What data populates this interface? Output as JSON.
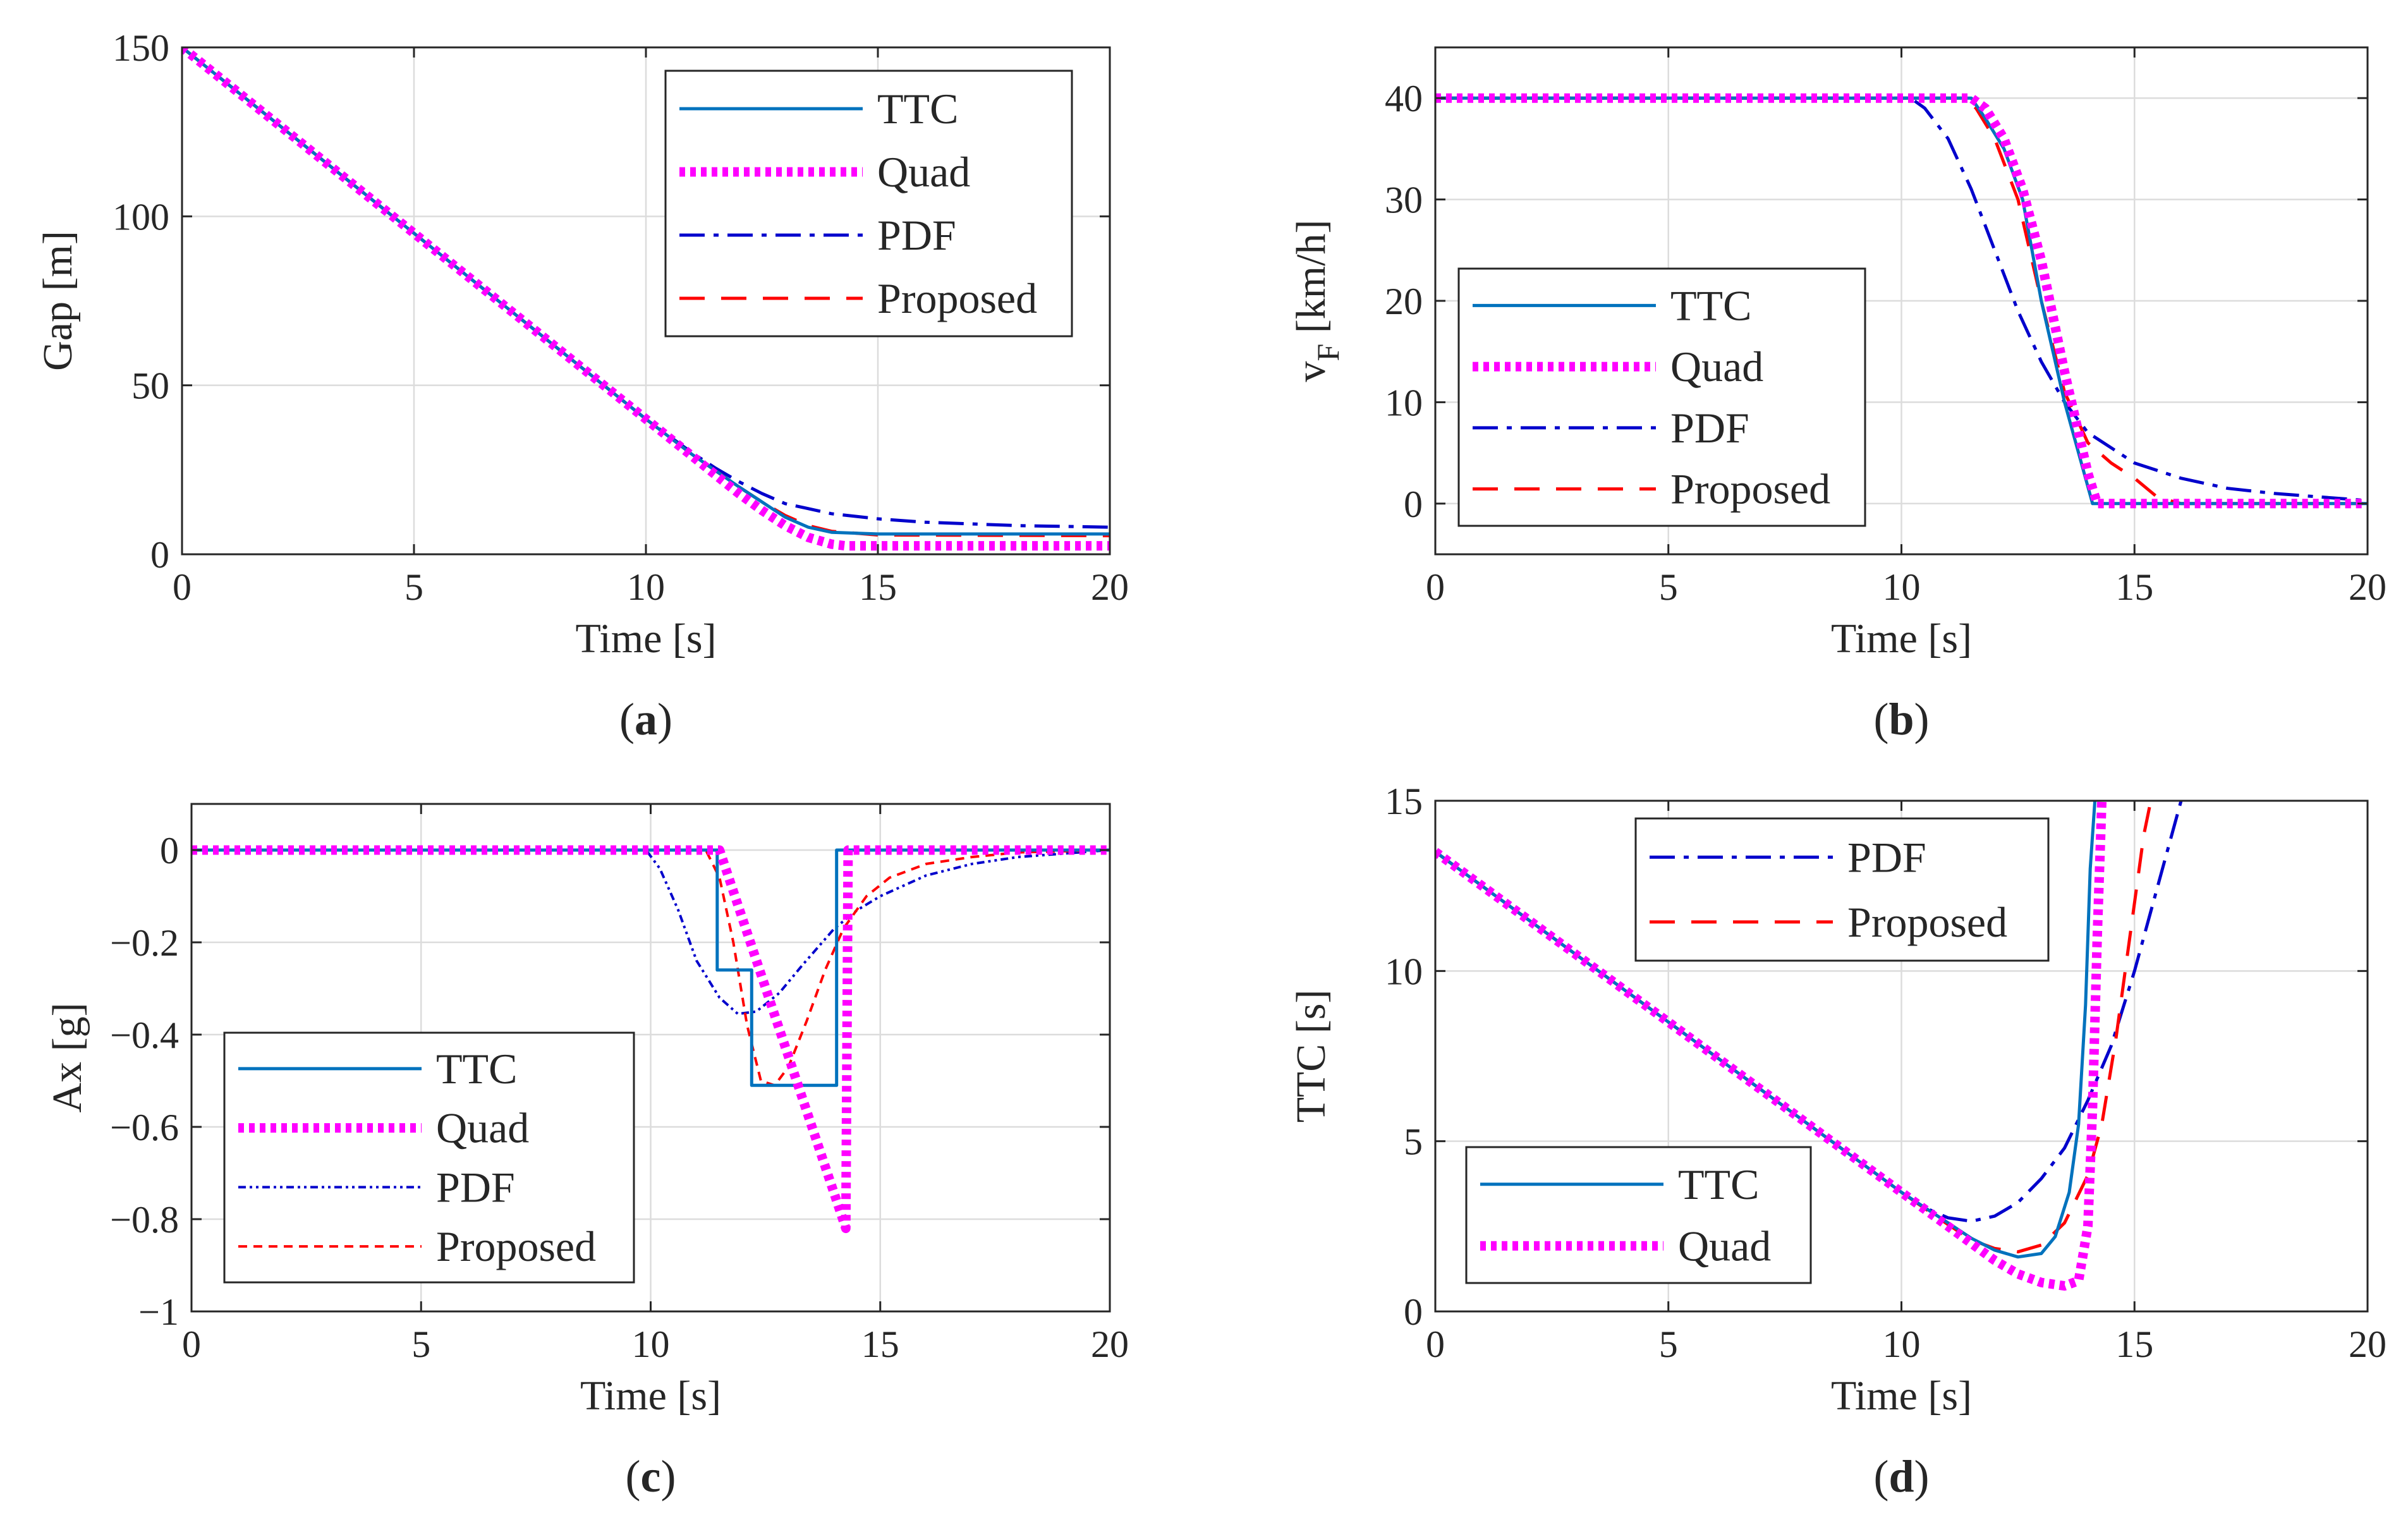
{
  "colors": {
    "TTC": "#0072BD",
    "Quad": "#FF00FF",
    "PDF": "#0000CC",
    "Proposed": "#FF0000",
    "grid": "#DCDCDC",
    "axis": "#262626"
  },
  "chart_data": [
    {
      "id": "a",
      "type": "line",
      "caption_letter": "a",
      "xlabel": "Time [s]",
      "ylabel": "Gap [m]",
      "xlim": [
        0,
        20
      ],
      "ylim": [
        0,
        150
      ],
      "xticks": [
        0,
        5,
        10,
        15,
        20
      ],
      "yticks": [
        0,
        50,
        100,
        150
      ],
      "grid": true,
      "legend_position": "top-right",
      "legend": [
        "TTC",
        "Quad",
        "PDF",
        "Proposed"
      ],
      "series": [
        {
          "name": "TTC",
          "x": [
            0,
            5,
            10,
            11,
            12,
            12.5,
            13,
            13.5,
            14,
            15,
            20
          ],
          "y": [
            150,
            95,
            40,
            29.5,
            20,
            15.5,
            11,
            8,
            6.5,
            6,
            6
          ]
        },
        {
          "name": "Quad",
          "x": [
            0,
            5,
            10,
            11,
            11.5,
            12,
            12.5,
            13,
            13.5,
            14,
            14.3,
            15,
            20
          ],
          "y": [
            150,
            95,
            40,
            29,
            23.5,
            18,
            13,
            8.5,
            5,
            3,
            2.5,
            2.5,
            2.5
          ]
        },
        {
          "name": "PDF",
          "x": [
            0,
            5,
            10,
            10.5,
            11,
            11.5,
            12,
            12.5,
            13,
            14,
            15,
            16,
            18,
            20
          ],
          "y": [
            150,
            95,
            40,
            35,
            30,
            25.5,
            21.5,
            18,
            15,
            12,
            10.5,
            9.5,
            8.5,
            8
          ]
        },
        {
          "name": "Proposed",
          "x": [
            0,
            5,
            10,
            11,
            12,
            12.5,
            13,
            13.5,
            14,
            15,
            20
          ],
          "y": [
            150,
            95,
            40,
            29.5,
            20,
            15.5,
            11.5,
            8.5,
            6.8,
            5.7,
            5.5
          ]
        }
      ]
    },
    {
      "id": "b",
      "type": "line",
      "caption_letter": "b",
      "xlabel": "Time [s]",
      "ylabel": "v",
      "ylabel_subscript": "F",
      "ylabel_unit": " [km/h]",
      "xlim": [
        0,
        20
      ],
      "ylim": [
        -5,
        45
      ],
      "xticks": [
        0,
        5,
        10,
        15,
        20
      ],
      "yticks": [
        0,
        10,
        20,
        30,
        40
      ],
      "grid": true,
      "legend_position": "bottom-left",
      "legend": [
        "TTC",
        "Quad",
        "PDF",
        "Proposed"
      ],
      "series": [
        {
          "name": "TTC",
          "x": [
            0,
            11.5,
            11.8,
            12.2,
            12.6,
            13,
            13.5,
            14.1,
            15,
            20
          ],
          "y": [
            40,
            40,
            38,
            35,
            30,
            20,
            10,
            0,
            0,
            0
          ]
        },
        {
          "name": "Quad",
          "x": [
            0,
            11.5,
            11.8,
            12.2,
            12.6,
            13,
            13.5,
            13.8,
            14,
            14.2,
            15,
            20
          ],
          "y": [
            40,
            40,
            39,
            36,
            31,
            24,
            13,
            7,
            3,
            0,
            0,
            0
          ]
        },
        {
          "name": "PDF",
          "x": [
            0,
            10.2,
            10.5,
            11,
            11.5,
            12,
            12.5,
            13,
            13.5,
            14,
            15,
            16,
            17,
            18,
            20
          ],
          "y": [
            40,
            40,
            39,
            36,
            31,
            25,
            19,
            14,
            10,
            7,
            4,
            2.5,
            1.5,
            1,
            0.3
          ]
        },
        {
          "name": "Proposed",
          "x": [
            0,
            11.3,
            11.6,
            12,
            12.5,
            13,
            13.5,
            14,
            14.5,
            15,
            15.5,
            16,
            20
          ],
          "y": [
            40,
            40,
            39,
            36,
            30,
            20,
            11,
            6,
            4,
            2.5,
            0.6,
            0,
            0
          ]
        }
      ]
    },
    {
      "id": "c",
      "type": "line",
      "caption_letter": "c",
      "xlabel": "Time [s]",
      "ylabel": "Ax [g]",
      "xlim": [
        0,
        20
      ],
      "ylim": [
        -1,
        0.1
      ],
      "xticks": [
        0,
        5,
        10,
        15,
        20
      ],
      "yticks": [
        0,
        -0.2,
        -0.4,
        -0.6,
        -0.8,
        -1
      ],
      "ytick_labels": [
        "0",
        "−0.2",
        "−0.4",
        "−0.6",
        "−0.8",
        "−1"
      ],
      "grid": true,
      "legend_position": "bottom-left",
      "legend": [
        "TTC",
        "Quad",
        "PDF",
        "Proposed"
      ],
      "series": [
        {
          "name": "TTC",
          "x": [
            0,
            11.45,
            11.45,
            12.2,
            12.2,
            14.05,
            14.05,
            20
          ],
          "y": [
            0,
            0,
            -0.26,
            -0.26,
            -0.51,
            -0.51,
            0,
            0
          ]
        },
        {
          "name": "Quad",
          "x": [
            0,
            11.5,
            14.25,
            14.3,
            20
          ],
          "y": [
            0,
            0,
            -0.82,
            0,
            0
          ]
        },
        {
          "name": "PDF",
          "x": [
            0,
            9.9,
            10.2,
            10.6,
            11,
            11.5,
            11.9,
            12.3,
            12.8,
            13.3,
            14,
            14.5,
            15,
            16,
            17,
            18,
            20
          ],
          "y": [
            0,
            0,
            -0.04,
            -0.13,
            -0.24,
            -0.32,
            -0.355,
            -0.35,
            -0.31,
            -0.25,
            -0.17,
            -0.13,
            -0.1,
            -0.055,
            -0.03,
            -0.015,
            0
          ]
        },
        {
          "name": "Proposed",
          "x": [
            0,
            11.2,
            11.5,
            11.8,
            12.1,
            12.4,
            12.7,
            13,
            13.4,
            13.8,
            14.2,
            14.7,
            15.2,
            16,
            17,
            18,
            20
          ],
          "y": [
            0,
            0,
            -0.06,
            -0.2,
            -0.38,
            -0.5,
            -0.51,
            -0.47,
            -0.37,
            -0.26,
            -0.17,
            -0.1,
            -0.06,
            -0.03,
            -0.015,
            -0.005,
            0
          ]
        }
      ]
    },
    {
      "id": "d",
      "type": "line",
      "caption_letter": "d",
      "xlabel": "Time [s]",
      "ylabel": "TTC [s]",
      "xlim": [
        0,
        20
      ],
      "ylim": [
        0,
        15
      ],
      "xticks": [
        0,
        5,
        10,
        15,
        20
      ],
      "yticks": [
        0,
        5,
        10,
        15
      ],
      "grid": true,
      "legend_groups": [
        {
          "position": "top-center",
          "entries": [
            "PDF",
            "Proposed"
          ]
        },
        {
          "position": "bottom-left",
          "entries": [
            "TTC",
            "Quad"
          ]
        }
      ],
      "series": [
        {
          "name": "TTC",
          "x": [
            0,
            5,
            10,
            11,
            11.5,
            12,
            12.5,
            13,
            13.3,
            13.6,
            13.8,
            13.95,
            14.05,
            14.15
          ],
          "y": [
            13.5,
            8.5,
            3.5,
            2.6,
            2.15,
            1.8,
            1.6,
            1.7,
            2.2,
            3.5,
            5.5,
            9,
            13,
            15
          ]
        },
        {
          "name": "Quad",
          "x": [
            0,
            5,
            10,
            11,
            11.5,
            12,
            12.5,
            13,
            13.5,
            13.8,
            14,
            14.1,
            14.2,
            14.3
          ],
          "y": [
            13.5,
            8.5,
            3.5,
            2.5,
            2.0,
            1.5,
            1.1,
            0.85,
            0.75,
            0.9,
            2.5,
            6,
            11,
            15
          ]
        },
        {
          "name": "PDF",
          "x": [
            0,
            5,
            10,
            10.5,
            11,
            11.5,
            12,
            12.5,
            13,
            13.5,
            14,
            14.5,
            15,
            15.5,
            16
          ],
          "y": [
            13.5,
            8.5,
            3.5,
            3.05,
            2.75,
            2.65,
            2.8,
            3.2,
            3.9,
            4.8,
            6.2,
            7.8,
            10,
            12.5,
            15
          ]
        },
        {
          "name": "Proposed",
          "x": [
            0,
            5,
            10,
            11,
            11.5,
            12,
            12.5,
            13,
            13.5,
            14,
            14.3,
            14.6,
            14.9,
            15.2,
            15.35
          ],
          "y": [
            13.5,
            8.5,
            3.5,
            2.55,
            2.1,
            1.85,
            1.75,
            1.95,
            2.6,
            4,
            5.5,
            8,
            11,
            14,
            15
          ]
        }
      ]
    }
  ]
}
